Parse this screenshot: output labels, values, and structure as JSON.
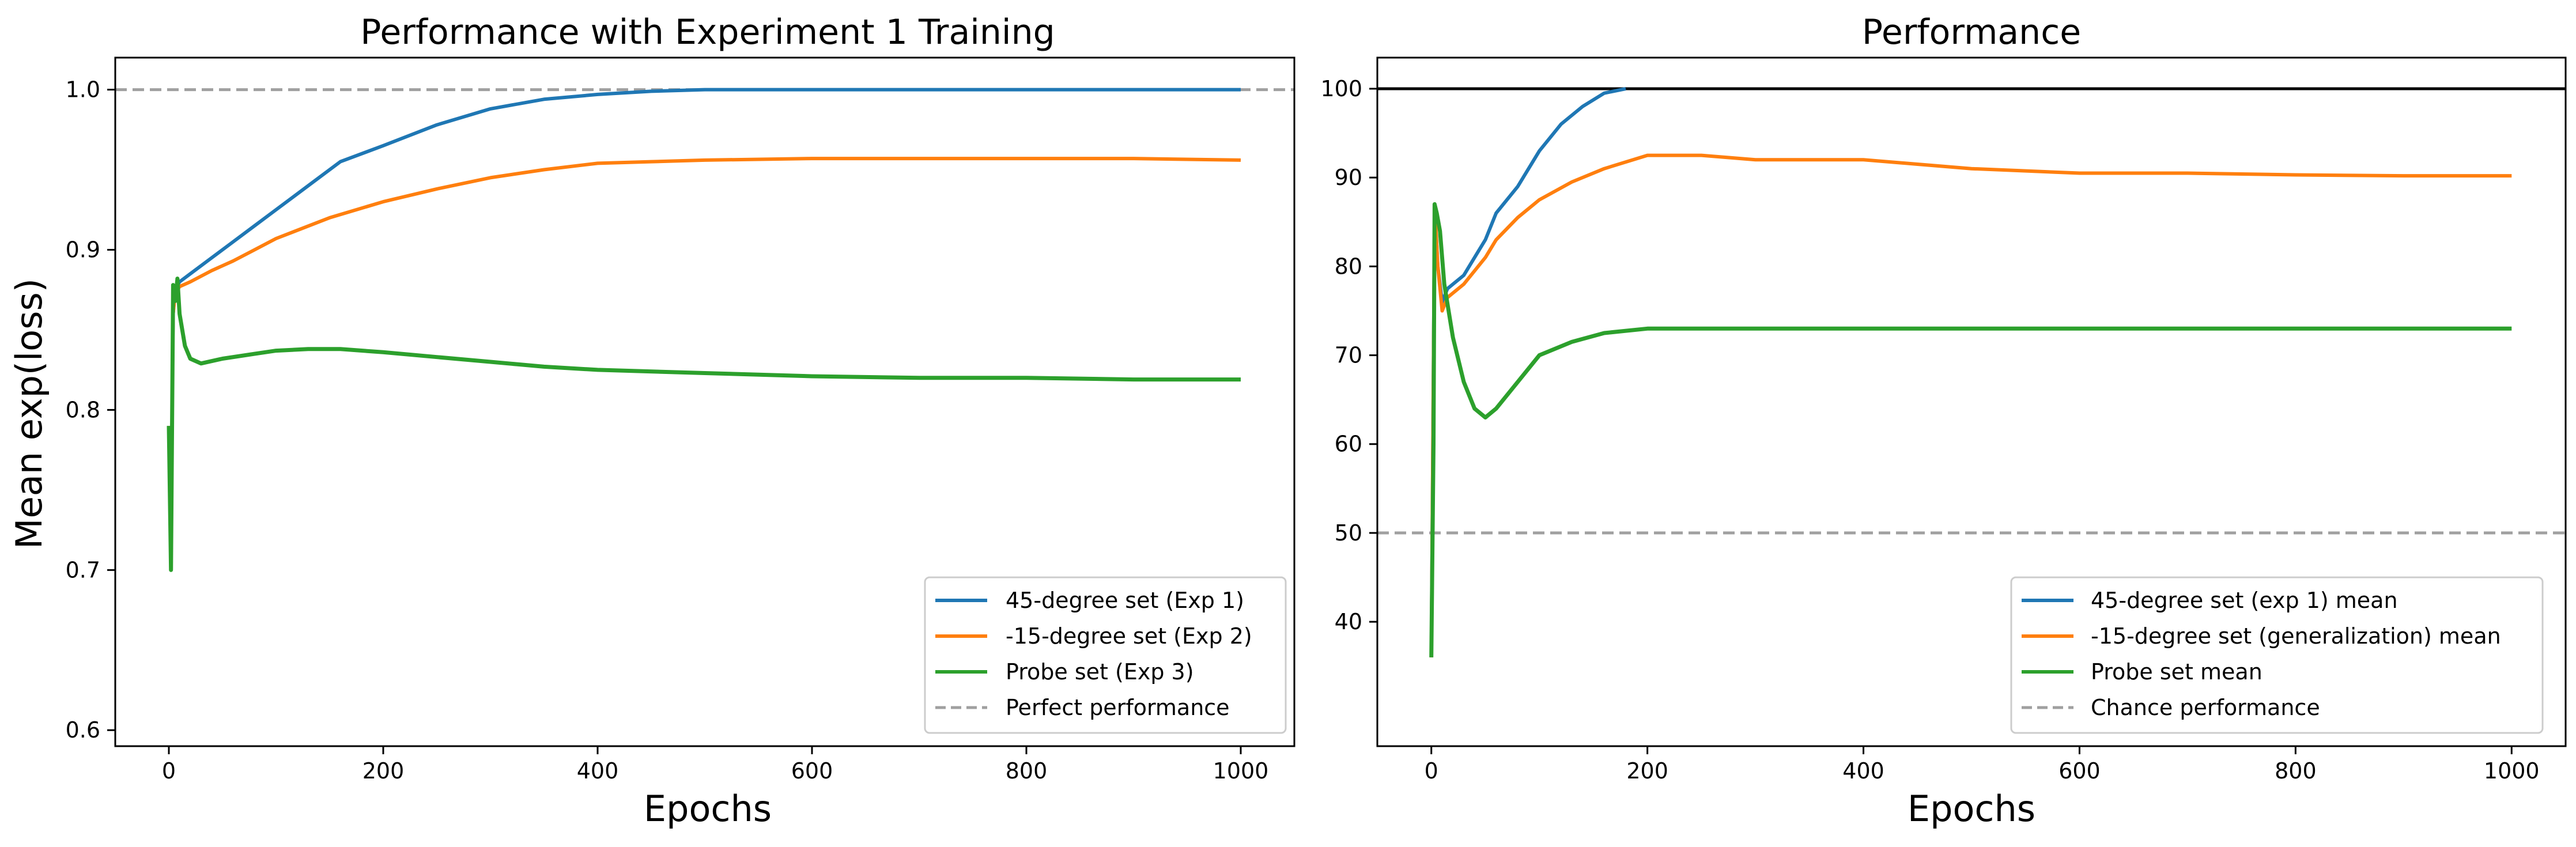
{
  "chart_data": [
    {
      "type": "line",
      "title": "Performance with Experiment 1 Training",
      "xlabel": "Epochs",
      "ylabel": "Mean exp(loss)",
      "xlim": [
        -50,
        1050
      ],
      "ylim": [
        0.59,
        1.02
      ],
      "xticks": [
        0,
        200,
        400,
        600,
        800,
        1000
      ],
      "yticks": [
        0.6,
        0.7,
        0.8,
        0.9,
        1.0
      ],
      "ytick_labels": [
        "0.6",
        "0.7",
        "0.8",
        "0.9",
        "1.0"
      ],
      "grid": false,
      "legend_position": "lower-right",
      "reference_lines": [
        {
          "name": "Perfect performance",
          "y": 1.0,
          "color": "#a0a0a0",
          "style": "dashed"
        }
      ],
      "series": [
        {
          "name": "45-degree set (Exp 1)",
          "color": "#1f77b4",
          "x": [
            0,
            2,
            4,
            6,
            10,
            20,
            40,
            60,
            80,
            100,
            130,
            160,
            200,
            250,
            300,
            350,
            400,
            450,
            500,
            600,
            700,
            800,
            900,
            1000
          ],
          "y": [
            0.79,
            0.73,
            0.86,
            0.875,
            0.88,
            0.885,
            0.895,
            0.905,
            0.915,
            0.925,
            0.94,
            0.955,
            0.965,
            0.978,
            0.988,
            0.994,
            0.997,
            0.999,
            1.0,
            1.0,
            1.0,
            1.0,
            1.0,
            1.0
          ]
        },
        {
          "name": "-15-degree set (Exp 2)",
          "color": "#ff7f0e",
          "x": [
            0,
            2,
            4,
            6,
            10,
            20,
            40,
            60,
            80,
            100,
            150,
            200,
            250,
            300,
            350,
            400,
            450,
            500,
            600,
            700,
            800,
            900,
            1000
          ],
          "y": [
            0.79,
            0.73,
            0.86,
            0.873,
            0.877,
            0.88,
            0.887,
            0.893,
            0.9,
            0.907,
            0.92,
            0.93,
            0.938,
            0.945,
            0.95,
            0.954,
            0.955,
            0.956,
            0.957,
            0.957,
            0.957,
            0.957,
            0.956
          ]
        },
        {
          "name": "Probe set (Exp 3)",
          "color": "#2ca02c",
          "x": [
            0,
            2,
            4,
            6,
            8,
            10,
            15,
            20,
            30,
            50,
            80,
            100,
            130,
            160,
            200,
            250,
            300,
            350,
            400,
            500,
            600,
            700,
            800,
            900,
            1000
          ],
          "y": [
            0.79,
            0.7,
            0.878,
            0.868,
            0.882,
            0.86,
            0.84,
            0.832,
            0.829,
            0.832,
            0.835,
            0.837,
            0.838,
            0.838,
            0.836,
            0.833,
            0.83,
            0.827,
            0.825,
            0.823,
            0.821,
            0.82,
            0.82,
            0.819,
            0.819
          ]
        }
      ]
    },
    {
      "type": "line",
      "title": "Performance",
      "xlabel": "Epochs",
      "ylabel": "",
      "xlim": [
        -50,
        1050
      ],
      "ylim": [
        26,
        103.5
      ],
      "xticks": [
        0,
        200,
        400,
        600,
        800,
        1000
      ],
      "yticks": [
        40,
        50,
        60,
        70,
        80,
        90,
        100
      ],
      "ytick_labels": [
        "40",
        "50",
        "60",
        "70",
        "80",
        "90",
        "100"
      ],
      "grid": false,
      "legend_position": "lower-right",
      "reference_lines": [
        {
          "name": "",
          "y": 100,
          "color": "#000000",
          "style": "solid"
        },
        {
          "name": "Chance performance",
          "y": 50,
          "color": "#a0a0a0",
          "style": "dashed"
        }
      ],
      "series": [
        {
          "name": "45-degree set (exp 1) mean",
          "color": "#1f77b4",
          "x": [
            0,
            3,
            6,
            10,
            15,
            20,
            30,
            40,
            50,
            60,
            80,
            100,
            120,
            140,
            160,
            180
          ],
          "y": [
            36,
            87,
            80,
            76,
            77.5,
            78,
            79,
            81,
            83,
            86,
            89,
            93,
            96,
            98,
            99.5,
            100
          ]
        },
        {
          "name": "-15-degree set (generalization) mean",
          "color": "#ff7f0e",
          "x": [
            0,
            3,
            6,
            10,
            15,
            20,
            30,
            40,
            50,
            60,
            80,
            100,
            130,
            160,
            200,
            250,
            300,
            350,
            400,
            450,
            500,
            600,
            700,
            800,
            900,
            1000
          ],
          "y": [
            36,
            87,
            80,
            75,
            76.5,
            77,
            78,
            79.5,
            81,
            83,
            85.5,
            87.5,
            89.5,
            91,
            92.5,
            92.5,
            92,
            92,
            92,
            91.5,
            91,
            90.5,
            90.5,
            90.3,
            90.2,
            90.2
          ]
        },
        {
          "name": "Probe set mean",
          "color": "#2ca02c",
          "x": [
            0,
            2,
            3,
            5,
            8,
            12,
            20,
            30,
            40,
            50,
            60,
            80,
            100,
            130,
            160,
            200,
            250,
            300,
            350,
            400,
            500,
            600,
            700,
            800,
            900,
            1000
          ],
          "y": [
            36,
            60,
            87,
            86,
            84,
            78,
            72,
            67,
            64,
            63,
            64,
            67,
            70,
            71.5,
            72.5,
            73,
            73,
            73,
            73,
            73,
            73,
            73,
            73,
            73,
            73,
            73
          ]
        }
      ]
    }
  ]
}
